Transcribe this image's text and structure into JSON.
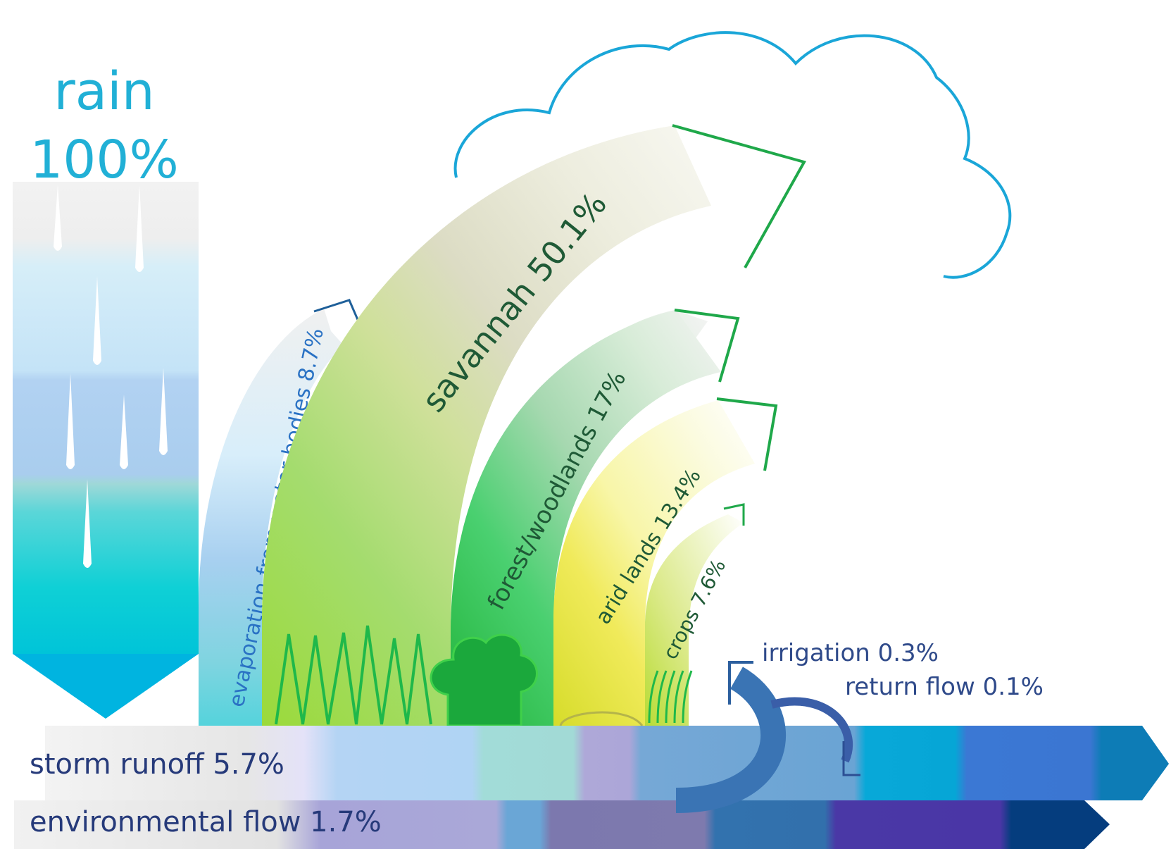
{
  "rain": {
    "label": "rain",
    "value": "100%"
  },
  "flows": {
    "evaporation": "evaporation from water bodies 8.7%",
    "savannah": "savannah 50.1%",
    "forest": "forest/woodlands 17%",
    "arid": "arid lands 13.4%",
    "crops": "crops 7.6%",
    "irrigation": "irrigation 0.3%",
    "return_flow": "return flow 0.1%",
    "storm_runoff": "storm runoff 5.7%",
    "environmental_flow": "environmental flow 1.7%"
  },
  "icons": [
    "raindrop-icon",
    "cloud-icon",
    "grass-icon",
    "tree-icon",
    "crops-icon"
  ],
  "colors": {
    "rain_text": "#21b0d6",
    "cloud": "#1aa6d8",
    "arrow_green": "#1fa84a",
    "evap_arrow": "#1e5f99",
    "label_dark_green": "#1f5a36",
    "label_blue": "#2f4a8a",
    "label_dark_blue": "#263a7a"
  }
}
